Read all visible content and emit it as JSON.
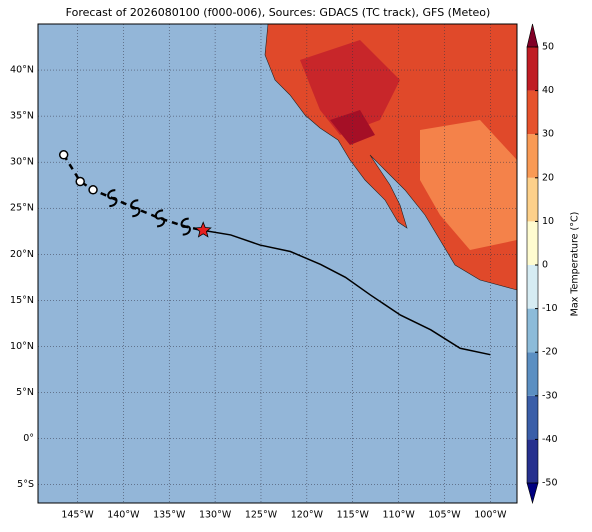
{
  "chart_data": {
    "type": "map",
    "title": "Forecast of 2026080100 (f000-006), Sources: GDACS (TC track), GFS (Meteo)",
    "xlim": [
      -149.3,
      -97.1
    ],
    "ylim": [
      -7,
      45
    ],
    "xticks": [
      {
        "value": -145,
        "label": "145°W"
      },
      {
        "value": -140,
        "label": "140°W"
      },
      {
        "value": -135,
        "label": "135°W"
      },
      {
        "value": -130,
        "label": "130°W"
      },
      {
        "value": -125,
        "label": "125°W"
      },
      {
        "value": -120,
        "label": "120°W"
      },
      {
        "value": -115,
        "label": "115°W"
      },
      {
        "value": -110,
        "label": "110°W"
      },
      {
        "value": -105,
        "label": "105°W"
      },
      {
        "value": -100,
        "label": "100°W"
      }
    ],
    "yticks": [
      {
        "value": -5,
        "label": "5°S"
      },
      {
        "value": 0,
        "label": "0°"
      },
      {
        "value": 5,
        "label": "5°N"
      },
      {
        "value": 10,
        "label": "10°N"
      },
      {
        "value": 15,
        "label": "15°N"
      },
      {
        "value": 20,
        "label": "20°N"
      },
      {
        "value": 25,
        "label": "25°N"
      },
      {
        "value": 30,
        "label": "30°N"
      },
      {
        "value": 35,
        "label": "35°N"
      },
      {
        "value": 40,
        "label": "40°N"
      }
    ],
    "grid": true,
    "past_track": {
      "lon": [
        -146.5,
        -144.7,
        -143.3,
        -141.2,
        -138.7,
        -136.0,
        -133.2,
        -131.3
      ],
      "lat": [
        30.8,
        27.9,
        27.0,
        26.1,
        25.0,
        23.9,
        23.0,
        22.6
      ],
      "symbols": [
        "circle",
        "circle",
        "circle",
        "cyclone",
        "cyclone",
        "cyclone",
        "cyclone",
        "star"
      ]
    },
    "forecast_track": {
      "lon": [
        -131.3,
        -128.3,
        -125.1,
        -121.8,
        -118.5,
        -115.8,
        -113.1,
        -109.8,
        -106.5,
        -103.3,
        -100.0
      ],
      "lat": [
        22.6,
        22.1,
        21.0,
        20.3,
        18.9,
        17.5,
        15.6,
        13.4,
        11.8,
        9.8,
        9.1
      ]
    },
    "colorbar": {
      "label": "Max Temperature (°C)",
      "lim": [
        -50,
        50
      ],
      "ticks": [
        -50,
        -40,
        -30,
        -20,
        -10,
        0,
        10,
        20,
        30,
        40,
        50
      ],
      "colors": [
        "#26308e",
        "#3a5ea8",
        "#5b8fc2",
        "#8cbbd9",
        "#d6ecf3",
        "#fffcd0",
        "#fdd08a",
        "#f99a55",
        "#e6522c",
        "#c01d24"
      ],
      "under_color": "#000080",
      "over_color": "#800026"
    }
  }
}
